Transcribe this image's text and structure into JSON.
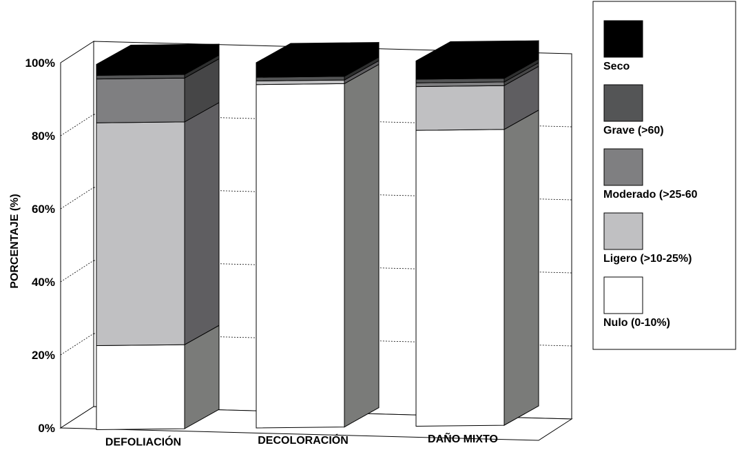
{
  "chart_data": {
    "type": "bar",
    "stacked": true,
    "three_d": true,
    "ylabel": "PORCENTAJE (%)",
    "ylim": [
      0,
      100
    ],
    "yticks": [
      "0%",
      "20%",
      "40%",
      "60%",
      "80%",
      "100%"
    ],
    "grid": true,
    "legend_position": "right",
    "categories": [
      "DEFOLIACIÓN",
      "DECOLORACIÓN",
      "DAÑO MIXTO"
    ],
    "series": [
      {
        "name": "Nulo (0-10%)",
        "color": "#ffffff",
        "values": [
          23,
          94,
          81
        ]
      },
      {
        "name": "Ligero (>10-25%)",
        "color": "#c0c0c2",
        "values": [
          61,
          1,
          12
        ]
      },
      {
        "name": "Moderado (>25-60",
        "color": "#7f7f81",
        "values": [
          12,
          0,
          1
        ]
      },
      {
        "name": "Grave (>60)",
        "color": "#545556",
        "values": [
          1,
          1,
          1
        ]
      },
      {
        "name": "Seco",
        "color": "#000000",
        "values": [
          3,
          4,
          5
        ]
      }
    ],
    "legend_order": [
      "Seco",
      "Grave (>60)",
      "Moderado (>25-60",
      "Ligero (>10-25%)",
      "Nulo (0-10%)"
    ]
  }
}
